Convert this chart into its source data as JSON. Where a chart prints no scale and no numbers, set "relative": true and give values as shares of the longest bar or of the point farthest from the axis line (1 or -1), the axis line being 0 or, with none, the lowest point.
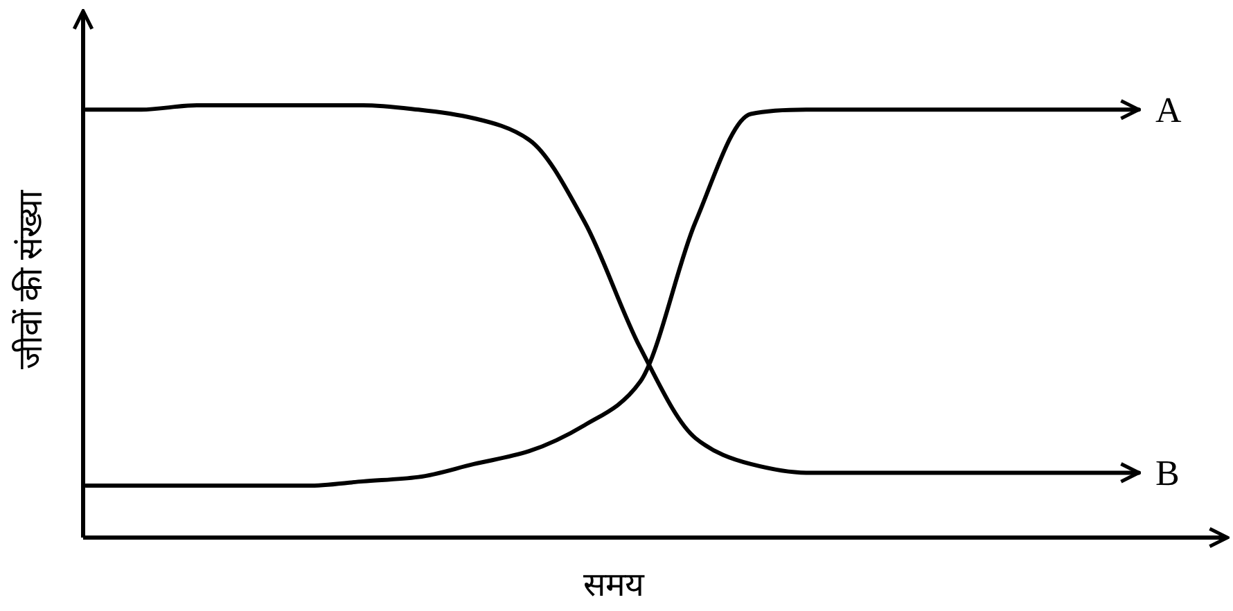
{
  "chart_data": {
    "type": "line",
    "relative": true,
    "xlabel": "समय",
    "ylabel": "जीवों की संख्या",
    "categories": [
      null,
      null,
      null,
      null,
      null,
      null,
      null,
      null,
      null,
      null,
      null,
      null,
      null,
      null,
      null,
      null,
      null,
      null,
      null,
      null
    ],
    "series": [
      {
        "name": "A",
        "color": "#000000",
        "values": [
          0.12,
          0.12,
          0.12,
          0.12,
          0.12,
          0.13,
          0.14,
          0.17,
          0.2,
          0.26,
          0.36,
          0.73,
          0.98,
          0.99,
          0.99,
          0.99,
          0.99,
          0.99,
          0.99,
          0.99
        ]
      },
      {
        "name": "B",
        "color": "#000000",
        "values": [
          0.99,
          0.99,
          1.0,
          1.0,
          1.0,
          1.0,
          0.99,
          0.97,
          0.92,
          0.73,
          0.44,
          0.23,
          0.17,
          0.15,
          0.15,
          0.15,
          0.15,
          0.15,
          0.15,
          0.15
        ]
      }
    ]
  }
}
